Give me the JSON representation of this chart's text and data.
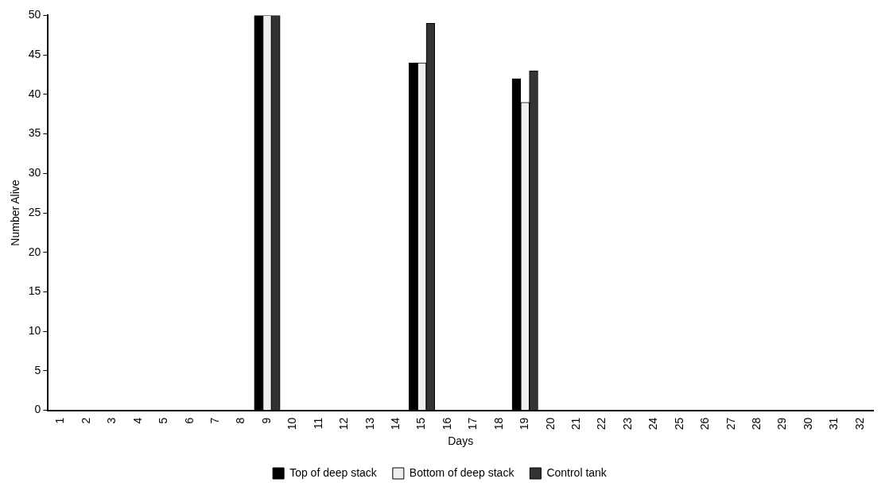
{
  "chart_data": {
    "type": "bar",
    "xlabel": "Days",
    "ylabel": "Number Alive",
    "categories": [
      "1",
      "2",
      "3",
      "4",
      "5",
      "6",
      "7",
      "8",
      "9",
      "10",
      "11",
      "12",
      "13",
      "14",
      "15",
      "16",
      "17",
      "18",
      "19",
      "20",
      "21",
      "22",
      "23",
      "24",
      "25",
      "26",
      "27",
      "28",
      "29",
      "30",
      "31",
      "32"
    ],
    "series": [
      {
        "name": "Top of deep stack",
        "color": "#000000",
        "values": [
          null,
          null,
          null,
          null,
          null,
          null,
          null,
          null,
          50,
          null,
          null,
          null,
          null,
          null,
          44,
          null,
          null,
          null,
          42,
          null,
          null,
          null,
          null,
          null,
          null,
          null,
          null,
          null,
          null,
          null,
          null,
          null
        ]
      },
      {
        "name": "Bottom of deep stack",
        "color": "#eeeeee",
        "values": [
          null,
          null,
          null,
          null,
          null,
          null,
          null,
          null,
          50,
          null,
          null,
          null,
          null,
          null,
          44,
          null,
          null,
          null,
          39,
          null,
          null,
          null,
          null,
          null,
          null,
          null,
          null,
          null,
          null,
          null,
          null,
          null
        ]
      },
      {
        "name": "Control tank",
        "color": "#333333",
        "values": [
          null,
          null,
          null,
          null,
          null,
          null,
          null,
          null,
          50,
          null,
          null,
          null,
          null,
          null,
          49,
          null,
          null,
          null,
          43,
          null,
          null,
          null,
          null,
          null,
          null,
          null,
          null,
          null,
          null,
          null,
          null,
          null
        ]
      }
    ],
    "ylim": [
      0,
      50
    ],
    "yticks": [
      0,
      5,
      10,
      15,
      20,
      25,
      30,
      35,
      40,
      45,
      50
    ],
    "grid": false,
    "legend": "bottom"
  }
}
